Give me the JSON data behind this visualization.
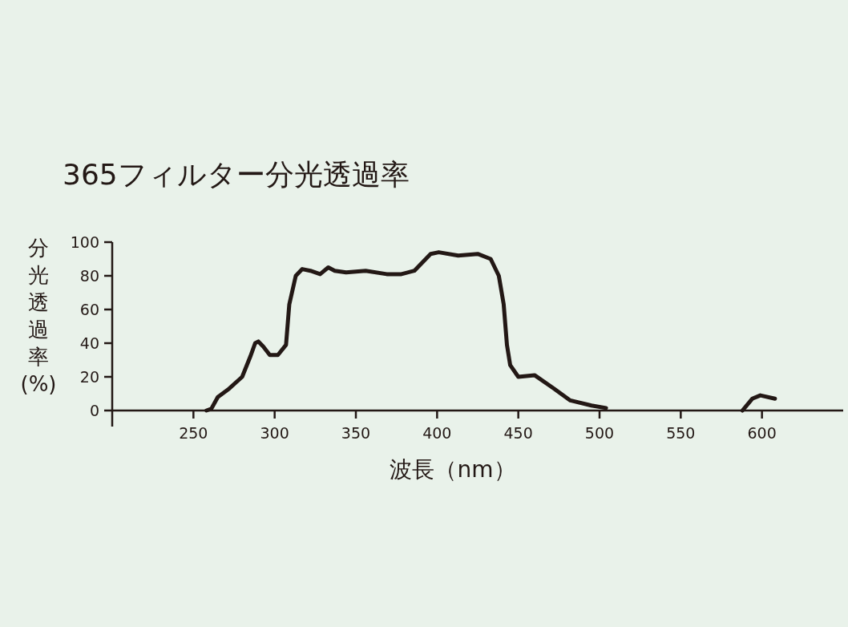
{
  "chart_data": {
    "type": "line",
    "title": "365フィルター分光透過率",
    "xlabel": "波長（nm）",
    "ylabel": "分光透過率(%)",
    "xlim": [
      200,
      650
    ],
    "ylim": [
      0,
      100
    ],
    "xticks": [
      250,
      300,
      350,
      400,
      450,
      500,
      550,
      600
    ],
    "yticks": [
      0,
      20,
      40,
      60,
      80,
      100
    ],
    "marker": "none",
    "line_style": "solid",
    "grid": false,
    "series": [
      {
        "color": "#231815",
        "x": [
          258,
          261,
          265,
          272,
          280,
          285,
          288,
          290,
          293,
          297,
          302,
          307,
          309,
          313,
          317,
          322,
          328,
          333,
          337,
          344,
          356,
          369,
          378,
          386,
          391,
          396,
          401,
          413,
          425,
          433,
          438,
          441,
          443,
          445,
          450,
          460,
          472,
          482,
          495,
          504
        ],
        "values": [
          0,
          1,
          8,
          13,
          20,
          32,
          40,
          41,
          38,
          33,
          33,
          39,
          63,
          80,
          84,
          83,
          81,
          85,
          83,
          82,
          83,
          81,
          81,
          83,
          88,
          93,
          94,
          92,
          93,
          90,
          80,
          63,
          39,
          27,
          20,
          21,
          13,
          6,
          3,
          1.5
        ]
      },
      {
        "color": "#231815",
        "x": [
          588,
          594,
          599,
          608
        ],
        "values": [
          0,
          7,
          9,
          7
        ]
      }
    ]
  }
}
